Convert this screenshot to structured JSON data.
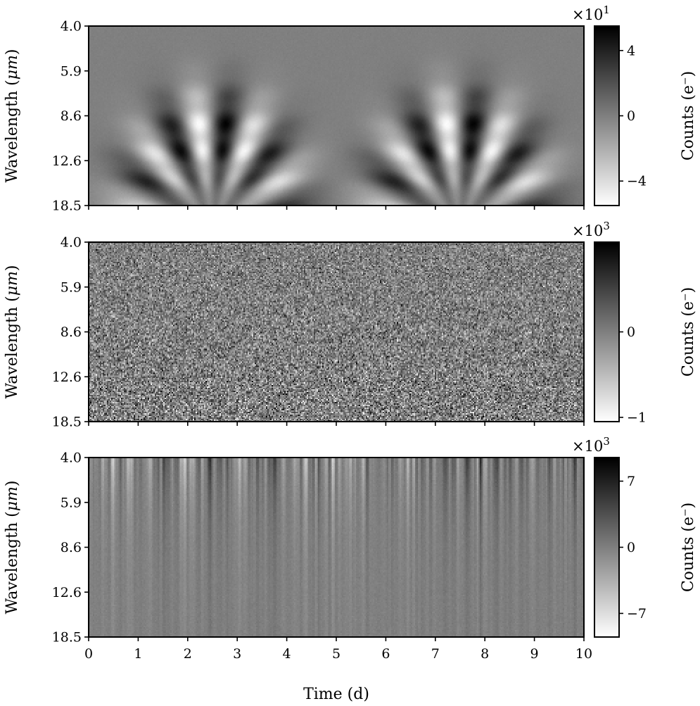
{
  "figure": {
    "xlabel": "Time (d)"
  },
  "chart_data": [
    {
      "type": "heatmap",
      "panel": "top",
      "description": "Two arc-shaped fringe patterns, centered near t≈2.5 d and t≈7.5 d, strongest at long wavelengths",
      "ylabel": "Wavelength (μm)",
      "ylabel_parts": [
        "Wavelength (",
        "μm",
        ")"
      ],
      "y_ticks": [
        "4.0",
        "5.9",
        "8.6",
        "12.6",
        "18.5"
      ],
      "x_ticks": [
        "0",
        "1",
        "2",
        "3",
        "4",
        "5",
        "6",
        "7",
        "8",
        "9",
        "10"
      ],
      "xlim": [
        0,
        10
      ],
      "colorbar": {
        "label": "Counts (e⁻)",
        "multiplier_base": "×10",
        "multiplier_exp": "1",
        "ticks": [
          4,
          0,
          -4
        ],
        "tick_labels": [
          "4",
          "0",
          "−4"
        ],
        "range": [
          -5.5,
          5.5
        ],
        "colormap": "gray_r"
      }
    },
    {
      "type": "heatmap",
      "panel": "middle",
      "description": "Random pixel noise over the full time-wavelength plane",
      "ylabel": "Wavelength (μm)",
      "ylabel_parts": [
        "Wavelength (",
        "μm",
        ")"
      ],
      "y_ticks": [
        "4.0",
        "5.9",
        "8.6",
        "12.6",
        "18.5"
      ],
      "x_ticks": [
        "0",
        "1",
        "2",
        "3",
        "4",
        "5",
        "6",
        "7",
        "8",
        "9",
        "10"
      ],
      "xlim": [
        0,
        10
      ],
      "colorbar": {
        "label": "Counts (e⁻)",
        "multiplier_base": "×10",
        "multiplier_exp": "3",
        "ticks": [
          0,
          -1
        ],
        "tick_labels": [
          "0",
          "−1"
        ],
        "range": [
          -1.05,
          1.05
        ],
        "colormap": "gray_r"
      }
    },
    {
      "type": "heatmap",
      "panel": "bottom",
      "description": "Vertical streaks (time-correlated noise), strongest at short wavelengths",
      "ylabel": "Wavelength (μm)",
      "ylabel_parts": [
        "Wavelength (",
        "μm",
        ")"
      ],
      "y_ticks": [
        "4.0",
        "5.9",
        "8.6",
        "12.6",
        "18.5"
      ],
      "x_ticks": [
        "0",
        "1",
        "2",
        "3",
        "4",
        "5",
        "6",
        "7",
        "8",
        "9",
        "10"
      ],
      "x_tick_values": [
        0,
        1,
        2,
        3,
        4,
        5,
        6,
        7,
        8,
        9,
        10
      ],
      "xlim": [
        0,
        10
      ],
      "colorbar": {
        "label": "Counts (e⁻)",
        "multiplier_base": "×10",
        "multiplier_exp": "3",
        "ticks": [
          7,
          0,
          -7
        ],
        "tick_labels": [
          "7",
          "0",
          "−7"
        ],
        "range": [
          -9.5,
          9.5
        ],
        "colormap": "gray_r"
      }
    }
  ]
}
